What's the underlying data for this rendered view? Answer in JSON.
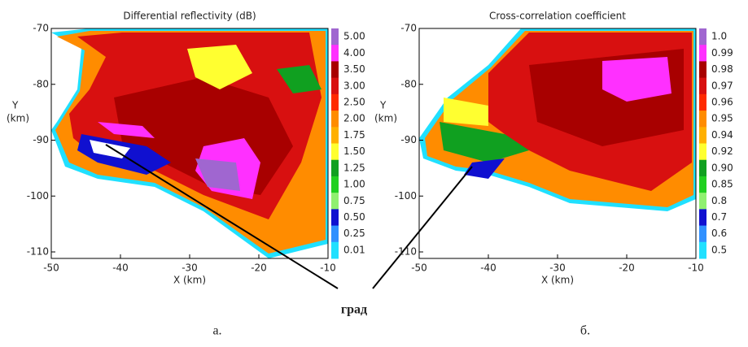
{
  "panels": [
    {
      "title": "Differential reflectivity (dB)",
      "ylabel": "Y",
      "yunit": "(km)",
      "xlabel": "X (km)",
      "xticks": [
        -50,
        -40,
        -30,
        -20,
        -10
      ],
      "yticks": [
        -70,
        -80,
        -90,
        -100,
        -110
      ],
      "colorbar": [
        {
          "label": "5.00",
          "color": "#a066d0"
        },
        {
          "label": "4.00",
          "color": "#ff30ff"
        },
        {
          "label": "3.50",
          "color": "#a80000"
        },
        {
          "label": "3.00",
          "color": "#d81010"
        },
        {
          "label": "2.50",
          "color": "#ff2a00"
        },
        {
          "label": "2.00",
          "color": "#ff8c00"
        },
        {
          "label": "1.75",
          "color": "#ffb000"
        },
        {
          "label": "1.50",
          "color": "#ffff30"
        },
        {
          "label": "1.25",
          "color": "#10a020"
        },
        {
          "label": "1.00",
          "color": "#20d020"
        },
        {
          "label": "0.75",
          "color": "#90f070"
        },
        {
          "label": "0.50",
          "color": "#1010d0"
        },
        {
          "label": "0.25",
          "color": "#3090ff"
        },
        {
          "label": "0.01",
          "color": "#20e0ff"
        }
      ],
      "panel_label": "а."
    },
    {
      "title": "Cross-correlation coefficient",
      "ylabel": "Y",
      "yunit": "(km)",
      "xlabel": "X (km)",
      "xticks": [
        -50,
        -40,
        -30,
        -20,
        -10
      ],
      "yticks": [
        -70,
        -80,
        -90,
        -100,
        -110
      ],
      "colorbar": [
        {
          "label": "1.0",
          "color": "#a066d0"
        },
        {
          "label": "0.99",
          "color": "#ff30ff"
        },
        {
          "label": "0.98",
          "color": "#a80000"
        },
        {
          "label": "0.97",
          "color": "#d81010"
        },
        {
          "label": "0.96",
          "color": "#ff2a00"
        },
        {
          "label": "0.95",
          "color": "#ff8c00"
        },
        {
          "label": "0.94",
          "color": "#ffb000"
        },
        {
          "label": "0.92",
          "color": "#ffff30"
        },
        {
          "label": "0.90",
          "color": "#10a020"
        },
        {
          "label": "0.85",
          "color": "#20d020"
        },
        {
          "label": "0.8",
          "color": "#90f070"
        },
        {
          "label": "0.7",
          "color": "#1010d0"
        },
        {
          "label": "0.6",
          "color": "#3090ff"
        },
        {
          "label": "0.5",
          "color": "#20e0ff"
        }
      ],
      "panel_label": "б."
    }
  ],
  "annotation": "град"
}
